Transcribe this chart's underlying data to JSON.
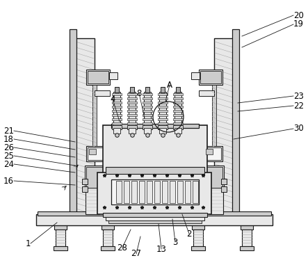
{
  "bg_color": "#ffffff",
  "lc": "#1a1a1a",
  "fl": "#e8e8e8",
  "fm": "#cccccc",
  "fd": "#aaaaaa",
  "fw": "#f5f5f5",
  "figsize": [
    4.43,
    3.81
  ],
  "dpi": 100,
  "labels_left": [
    [
      "21",
      22,
      198
    ],
    [
      "18",
      22,
      210
    ],
    [
      "26",
      22,
      222
    ],
    [
      "25",
      22,
      233
    ],
    [
      "24",
      22,
      245
    ],
    [
      "16",
      22,
      265
    ]
  ],
  "labels_right": [
    [
      "20",
      420,
      30
    ],
    [
      "19",
      420,
      42
    ],
    [
      "23",
      420,
      148
    ],
    [
      "22",
      420,
      160
    ],
    [
      "30",
      420,
      195
    ]
  ],
  "labels_top": [
    [
      "4",
      165,
      148
    ],
    [
      "8",
      200,
      140
    ],
    [
      "A",
      238,
      133
    ]
  ],
  "labels_bottom": [
    [
      "1",
      48,
      352
    ],
    [
      "28",
      178,
      345
    ],
    [
      "27",
      195,
      356
    ],
    [
      "13",
      230,
      350
    ],
    [
      "3",
      248,
      340
    ],
    [
      "2",
      268,
      328
    ]
  ]
}
